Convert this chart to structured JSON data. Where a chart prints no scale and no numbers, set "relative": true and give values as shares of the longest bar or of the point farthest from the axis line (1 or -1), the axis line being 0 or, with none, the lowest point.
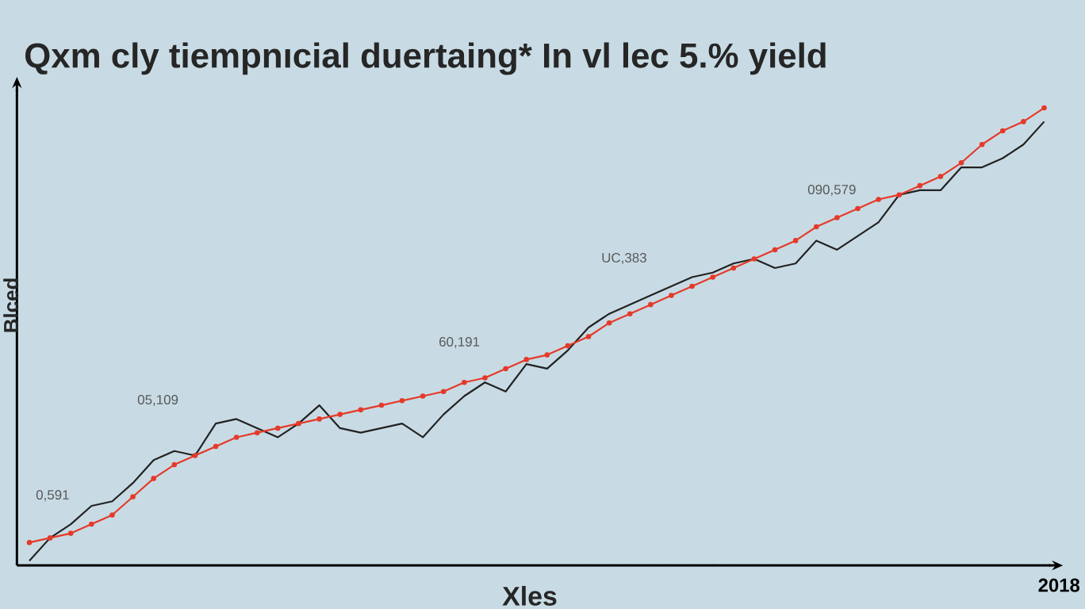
{
  "chart_data": {
    "type": "line",
    "title": "Qxm cly tiempnıcial duertaing* In vl lec 5.% yield",
    "xlabel": "Xles",
    "ylabel": "Blced",
    "relative": true,
    "annotations": [
      "0,591",
      "05,109",
      "60,191",
      "UC,383",
      "090,579",
      "2018"
    ],
    "categories": [
      null,
      null,
      null,
      null,
      null,
      null,
      null,
      null,
      null,
      null,
      null,
      null,
      null,
      null,
      null,
      null,
      null,
      null,
      null,
      null,
      null,
      null,
      null,
      null,
      null,
      null,
      null,
      null,
      null,
      null,
      null,
      null,
      null,
      null,
      null,
      null,
      null,
      null,
      null,
      null,
      null,
      null,
      null,
      null,
      null,
      null,
      null,
      null,
      null,
      null
    ],
    "series": [
      {
        "color": "#222222",
        "marker": "none",
        "values": [
          0.01,
          0.06,
          0.09,
          0.13,
          0.14,
          0.18,
          0.23,
          0.25,
          0.24,
          0.31,
          0.32,
          0.3,
          0.28,
          0.31,
          0.35,
          0.3,
          0.29,
          0.3,
          0.31,
          0.28,
          0.33,
          0.37,
          0.4,
          0.38,
          0.44,
          0.43,
          0.47,
          0.52,
          0.55,
          0.57,
          0.59,
          0.61,
          0.63,
          0.64,
          0.66,
          0.67,
          0.65,
          0.66,
          0.71,
          0.69,
          0.72,
          0.75,
          0.81,
          0.82,
          0.82,
          0.87,
          0.87,
          0.89,
          0.92,
          0.97
        ]
      },
      {
        "color": "#e53a2a",
        "marker": "circle",
        "values": [
          0.05,
          0.06,
          0.07,
          0.09,
          0.11,
          0.15,
          0.19,
          0.22,
          0.24,
          0.26,
          0.28,
          0.29,
          0.3,
          0.31,
          0.32,
          0.33,
          0.34,
          0.35,
          0.36,
          0.37,
          0.38,
          0.4,
          0.41,
          0.43,
          0.45,
          0.46,
          0.48,
          0.5,
          0.53,
          0.55,
          0.57,
          0.59,
          0.61,
          0.63,
          0.65,
          0.67,
          0.69,
          0.71,
          0.74,
          0.76,
          0.78,
          0.8,
          0.81,
          0.83,
          0.85,
          0.88,
          0.92,
          0.95,
          0.97,
          1
        ]
      }
    ]
  }
}
